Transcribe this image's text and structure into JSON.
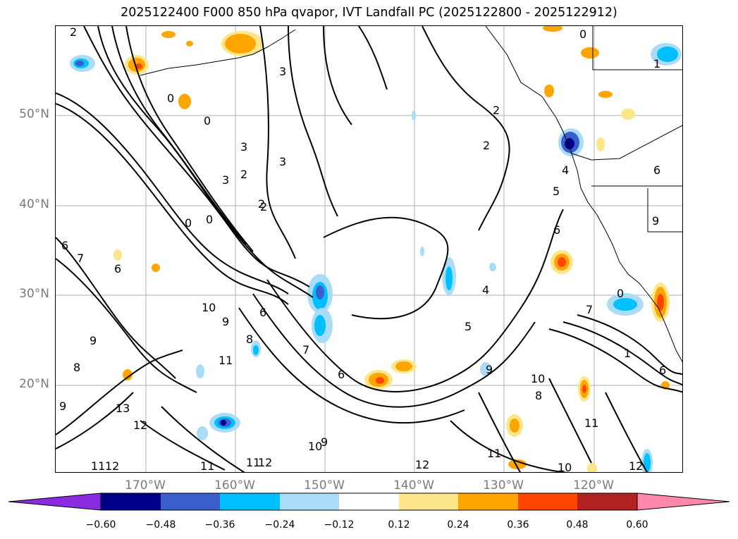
{
  "title": "2025122400 F000 850 hPa qvapor, IVT Landfall PC (2025122800 - 2025122912)",
  "lat_labels": [
    "50°N",
    "40°N",
    "30°N",
    "20°N"
  ],
  "lon_labels": [
    "170°W",
    "160°W",
    "150°W",
    "140°W",
    "130°W",
    "120°W"
  ],
  "colorbar": {
    "ticks": [
      "−0.60",
      "−0.48",
      "−0.36",
      "−0.24",
      "−0.12",
      "0.12",
      "0.24",
      "0.36",
      "0.48",
      "0.60"
    ],
    "colors": [
      "#8a2be2",
      "#00008b",
      "#3a5fcd",
      "#00bfff",
      "#aadcf8",
      "#ffffff",
      "#fde68a",
      "#ffa500",
      "#ff4500",
      "#b22222",
      "#ff88aa"
    ]
  },
  "contour_labels": [
    "2",
    "3",
    "0",
    "1",
    "0",
    "0",
    "3",
    "3",
    "2",
    "3",
    "2",
    "0",
    "0",
    "6",
    "6",
    "7",
    "9",
    "10",
    "11",
    "9",
    "8",
    "6",
    "7",
    "13",
    "12",
    "11",
    "12",
    "9",
    "8",
    "10",
    "9",
    "11",
    "12",
    "11",
    "12",
    "6",
    "4",
    "5",
    "6",
    "7",
    "4",
    "5",
    "2",
    "2",
    "2",
    "1",
    "0",
    "6",
    "6",
    "9",
    "11",
    "10",
    "8",
    "9",
    "10",
    "11",
    "12"
  ]
}
